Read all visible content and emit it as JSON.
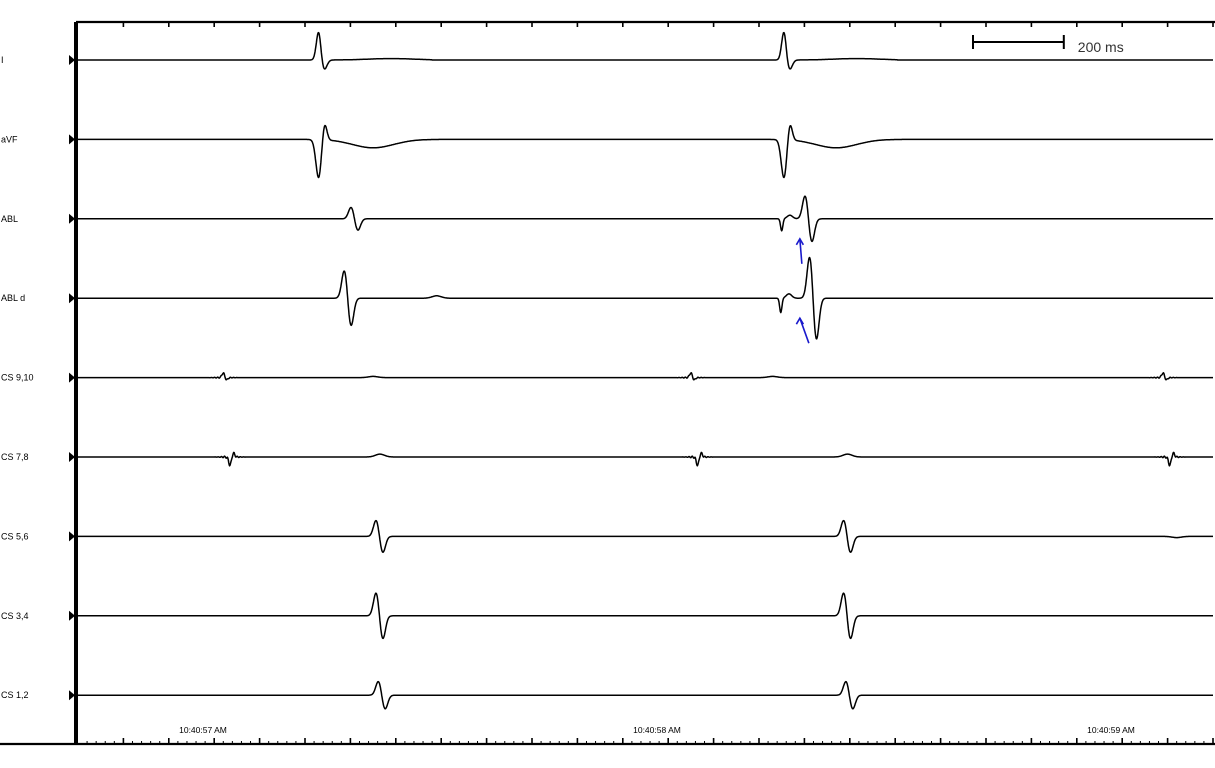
{
  "chart_data": {
    "type": "line",
    "title": "",
    "xlabel": "",
    "ylabel": "",
    "x_unit": "ms",
    "x_range_ms": [
      0,
      2500
    ],
    "x_ticks": [
      "10:40:57 AM",
      "10:40:58 AM",
      "10:40:59 AM"
    ],
    "x_tick_ms": [
      280,
      1280,
      2280
    ],
    "scale_bar": {
      "label": "200 ms",
      "duration_ms": 200
    },
    "grid": false,
    "colors": {
      "trace": "#000000",
      "annotation": "#1a1acc",
      "axis": "#000000"
    },
    "annotations": [
      {
        "type": "arrow",
        "lead": "ABL",
        "time_ms": 1590,
        "description_icon": "arrow-up-icon"
      },
      {
        "type": "arrow",
        "lead": "ABL d",
        "time_ms": 1590,
        "description_icon": "arrow-up-icon"
      }
    ],
    "series": [
      {
        "name": "I",
        "complexes": [
          {
            "t": 530,
            "kind": "spike",
            "amp": 1.2
          },
          {
            "t": 1555,
            "kind": "spike",
            "amp": 1.2
          }
        ]
      },
      {
        "name": "aVF",
        "complexes": [
          {
            "t": 530,
            "kind": "deflect",
            "amp": -1.6
          },
          {
            "t": 650,
            "kind": "twave",
            "amp": -0.35
          },
          {
            "t": 1555,
            "kind": "deflect",
            "amp": -1.6
          },
          {
            "t": 1670,
            "kind": "twave",
            "amp": -0.35
          }
        ]
      },
      {
        "name": "ABL",
        "complexes": [
          {
            "t": 610,
            "kind": "biphasic",
            "amp": 0.5
          },
          {
            "t": 1550,
            "kind": "notch",
            "amp": -0.5
          },
          {
            "t": 1610,
            "kind": "biphasic",
            "amp": 1.0
          }
        ]
      },
      {
        "name": "ABL d",
        "complexes": [
          {
            "t": 595,
            "kind": "biphasic",
            "amp": 1.2
          },
          {
            "t": 790,
            "kind": "bump",
            "amp": 0.1
          },
          {
            "t": 1548,
            "kind": "notch",
            "amp": -0.6
          },
          {
            "t": 1620,
            "kind": "biphasic",
            "amp": 1.8
          }
        ]
      },
      {
        "name": "CS 9,10",
        "complexes": [
          {
            "t": 320,
            "kind": "small",
            "amp": 0.2
          },
          {
            "t": 650,
            "kind": "bump",
            "amp": 0.05
          },
          {
            "t": 1350,
            "kind": "small",
            "amp": 0.2
          },
          {
            "t": 1530,
            "kind": "bump",
            "amp": 0.05
          },
          {
            "t": 2390,
            "kind": "small",
            "amp": 0.2
          }
        ]
      },
      {
        "name": "CS 7,8",
        "complexes": [
          {
            "t": 335,
            "kind": "small",
            "amp": -0.35
          },
          {
            "t": 665,
            "kind": "bump",
            "amp": 0.12
          },
          {
            "t": 1365,
            "kind": "small",
            "amp": -0.35
          },
          {
            "t": 1695,
            "kind": "bump",
            "amp": 0.12
          },
          {
            "t": 2405,
            "kind": "small",
            "amp": -0.35
          }
        ]
      },
      {
        "name": "CS 5,6",
        "complexes": [
          {
            "t": 665,
            "kind": "biphasic",
            "amp": 0.7
          },
          {
            "t": 1695,
            "kind": "biphasic",
            "amp": 0.7
          },
          {
            "t": 2420,
            "kind": "bump",
            "amp": -0.05
          }
        ]
      },
      {
        "name": "CS 3,4",
        "complexes": [
          {
            "t": 665,
            "kind": "biphasic",
            "amp": 1.0
          },
          {
            "t": 1695,
            "kind": "biphasic",
            "amp": 1.0
          }
        ]
      },
      {
        "name": "CS 1,2",
        "complexes": [
          {
            "t": 670,
            "kind": "biphasic",
            "amp": 0.6
          },
          {
            "t": 1700,
            "kind": "biphasic",
            "amp": 0.6
          }
        ]
      }
    ]
  }
}
